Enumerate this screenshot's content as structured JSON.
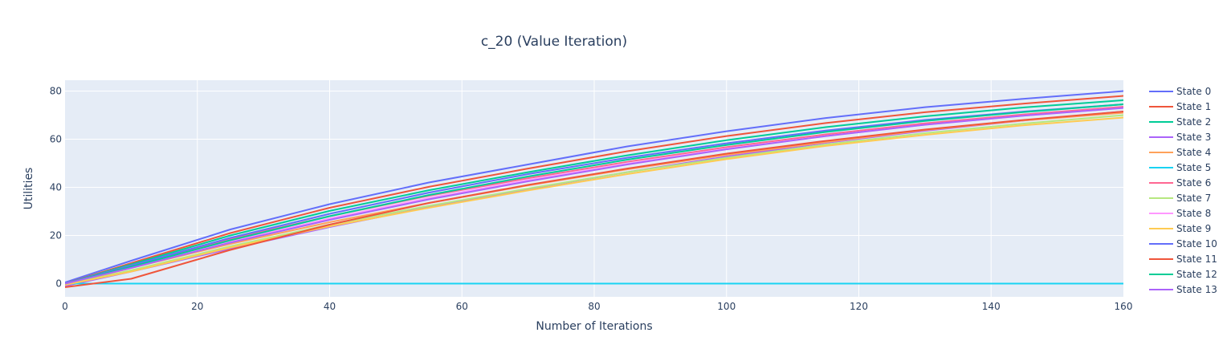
{
  "chart_data": {
    "type": "line",
    "title": "c_20 (Value Iteration)",
    "xlabel": "Number of Iterations",
    "ylabel": "Utilities",
    "xlim": [
      0,
      160
    ],
    "ylim": [
      -5.5,
      84.5
    ],
    "x_ticks": [
      0,
      20,
      40,
      60,
      80,
      100,
      120,
      140,
      160
    ],
    "y_ticks": [
      0,
      20,
      40,
      60,
      80
    ],
    "grid": true,
    "legend_position": "right",
    "background_color": "#e5ecf6",
    "series": [
      {
        "name": "State 0",
        "color": "#636efa",
        "x": [
          0,
          10,
          25,
          40,
          55,
          70,
          85,
          100,
          115,
          130,
          145,
          160
        ],
        "y": [
          0.5,
          9.5,
          22.5,
          33.0,
          42.0,
          49.5,
          57.0,
          63.3,
          68.8,
          73.3,
          76.8,
          80.0
        ]
      },
      {
        "name": "State 1",
        "color": "#EF553B",
        "x": [
          0,
          10,
          25,
          40,
          55,
          70,
          85,
          100,
          115,
          130,
          145,
          160
        ],
        "y": [
          0.0,
          8.5,
          21.0,
          31.5,
          40.2,
          47.8,
          55.0,
          61.3,
          66.7,
          71.2,
          74.8,
          78.0
        ]
      },
      {
        "name": "State 2",
        "color": "#00cc96",
        "x": [
          0,
          10,
          25,
          40,
          55,
          70,
          85,
          100,
          115,
          130,
          145,
          160
        ],
        "y": [
          0.0,
          8.0,
          20.0,
          30.2,
          38.8,
          46.3,
          53.3,
          59.6,
          65.0,
          69.5,
          73.2,
          76.2
        ]
      },
      {
        "name": "State 3",
        "color": "#ab63fa",
        "x": [
          0,
          10,
          25,
          40,
          55,
          70,
          85,
          100,
          115,
          130,
          145,
          160
        ],
        "y": [
          -1.0,
          5.0,
          14.5,
          23.5,
          31.8,
          39.3,
          46.3,
          52.8,
          58.5,
          63.5,
          67.8,
          71.5
        ]
      },
      {
        "name": "State 4",
        "color": "#FFA15A",
        "x": [
          0,
          10,
          25,
          40,
          55,
          70,
          85,
          100,
          115,
          130,
          145,
          160
        ],
        "y": [
          -0.5,
          6.5,
          16.5,
          25.5,
          33.5,
          40.8,
          47.5,
          53.5,
          58.8,
          63.8,
          67.8,
          71.0
        ]
      },
      {
        "name": "State 5",
        "color": "#19d3f3",
        "x": [
          0,
          20,
          40,
          60,
          80,
          100,
          120,
          140,
          160
        ],
        "y": [
          0,
          0,
          0,
          0,
          0,
          0,
          0,
          0,
          0
        ]
      },
      {
        "name": "State 6",
        "color": "#FF6692",
        "x": [
          0,
          10,
          25,
          40,
          55,
          70,
          85,
          100,
          115,
          130,
          145,
          160
        ],
        "y": [
          0.0,
          7.5,
          18.5,
          28.0,
          36.5,
          43.8,
          50.6,
          56.7,
          62.0,
          66.6,
          70.3,
          73.5
        ]
      },
      {
        "name": "State 7",
        "color": "#B6E880",
        "x": [
          0,
          10,
          25,
          40,
          55,
          70,
          85,
          100,
          115,
          130,
          145,
          160
        ],
        "y": [
          -0.5,
          5.5,
          15.5,
          24.5,
          32.3,
          39.5,
          46.3,
          52.3,
          57.8,
          62.5,
          66.5,
          70.0
        ]
      },
      {
        "name": "State 8",
        "color": "#FF97FF",
        "x": [
          0,
          10,
          25,
          40,
          55,
          70,
          85,
          100,
          115,
          130,
          145,
          160
        ],
        "y": [
          0.0,
          7.0,
          17.5,
          27.0,
          35.5,
          43.0,
          49.8,
          56.0,
          61.3,
          66.0,
          69.8,
          73.0
        ]
      },
      {
        "name": "State 9",
        "color": "#FECB52",
        "x": [
          0,
          10,
          25,
          40,
          55,
          70,
          85,
          100,
          115,
          130,
          145,
          160
        ],
        "y": [
          -0.5,
          5.0,
          15.0,
          23.8,
          31.5,
          38.7,
          45.5,
          51.7,
          57.2,
          61.8,
          65.8,
          69.0
        ]
      },
      {
        "name": "State 10",
        "color": "#636efa",
        "x": [
          0,
          10,
          25,
          40,
          55,
          70,
          85,
          100,
          115,
          130,
          145,
          160
        ],
        "y": [
          0.0,
          7.5,
          19.0,
          29.0,
          37.8,
          45.5,
          52.3,
          58.3,
          63.6,
          68.0,
          71.5,
          74.5
        ]
      },
      {
        "name": "State 11",
        "color": "#EF553B",
        "x": [
          0,
          10,
          25,
          40,
          55,
          70,
          85,
          100,
          115,
          130,
          145,
          160
        ],
        "y": [
          -1.5,
          2.0,
          14.0,
          24.5,
          33.5,
          41.0,
          47.8,
          54.0,
          59.3,
          64.0,
          68.0,
          71.5
        ]
      },
      {
        "name": "State 12",
        "color": "#00cc96",
        "x": [
          0,
          10,
          25,
          40,
          55,
          70,
          85,
          100,
          115,
          130,
          145,
          160
        ],
        "y": [
          0.0,
          7.0,
          18.0,
          28.0,
          36.8,
          44.5,
          51.5,
          57.6,
          63.0,
          67.6,
          71.3,
          74.5
        ]
      },
      {
        "name": "State 13",
        "color": "#ab63fa",
        "x": [
          0,
          10,
          25,
          40,
          55,
          70,
          85,
          100,
          115,
          130,
          145,
          160
        ],
        "y": [
          0.0,
          6.5,
          17.0,
          26.5,
          35.0,
          42.5,
          49.5,
          55.8,
          61.3,
          66.0,
          69.8,
          73.0
        ]
      }
    ]
  }
}
